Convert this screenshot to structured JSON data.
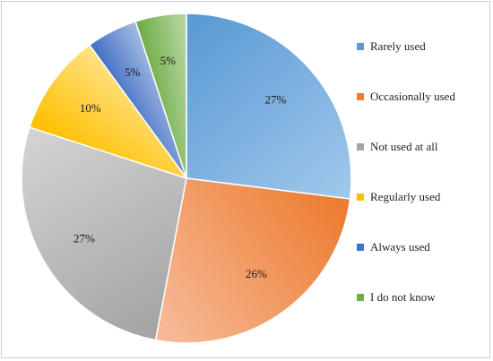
{
  "chart_data": {
    "type": "pie",
    "title": "",
    "start_angle_deg": 0,
    "direction": "clockwise",
    "categories": [
      "Rarely used",
      "Occasionally used",
      "Not used at all",
      "Regularly used",
      "Always used",
      "I do not know"
    ],
    "values": [
      27,
      26,
      27,
      10,
      5,
      5
    ],
    "data_labels": [
      "27%",
      "26%",
      "27%",
      "10%",
      "5%",
      "5%"
    ],
    "colors": [
      "#5b9bd5",
      "#ed7d31",
      "#a5a5a5",
      "#ffc000",
      "#4472c4",
      "#70ad47"
    ],
    "colors_light": [
      "#9ec6ea",
      "#f6b996",
      "#d2d2d2",
      "#ffe07f",
      "#a1b8e1",
      "#b7d6a3"
    ],
    "legend_position": "right",
    "grid": false
  },
  "legend": {
    "items": [
      {
        "label": "Rarely used",
        "color": "#5b9bd5"
      },
      {
        "label": "Occasionally used",
        "color": "#ed7d31"
      },
      {
        "label": "Not used at all",
        "color": "#a5a5a5"
      },
      {
        "label": "Regularly used",
        "color": "#ffc000"
      },
      {
        "label": "Always used",
        "color": "#4472c4"
      },
      {
        "label": "I do not know",
        "color": "#70ad47"
      }
    ]
  }
}
